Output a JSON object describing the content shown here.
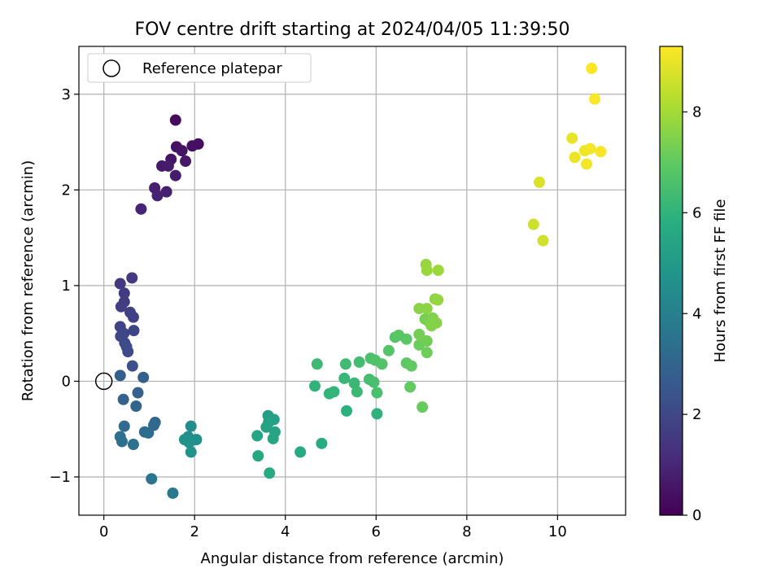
{
  "chart_data": {
    "type": "scatter",
    "title": "FOV centre drift starting at 2024/04/05 11:39:50",
    "xlabel": "Angular distance from reference (arcmin)",
    "ylabel": "Rotation from reference (arcmin)",
    "xlim": [
      -0.55,
      11.5
    ],
    "ylim": [
      -1.4,
      3.5
    ],
    "xticks": [
      0,
      2,
      4,
      6,
      8,
      10
    ],
    "yticks": [
      -1,
      0,
      1,
      2,
      3
    ],
    "grid": true,
    "legend": {
      "placement": "top-left",
      "entries": [
        "Reference platepar"
      ]
    },
    "colorbar": {
      "label": "Hours from first FF file",
      "range": [
        0,
        9.3
      ],
      "ticks": [
        0,
        2,
        4,
        6,
        8
      ],
      "colormap": "viridis"
    },
    "reference_point": {
      "x": 0,
      "y": 0,
      "label": "Reference platepar"
    },
    "points": [
      {
        "x": 1.58,
        "y": 2.73,
        "h": 0.3
      },
      {
        "x": 2.08,
        "y": 2.48,
        "h": 0.35
      },
      {
        "x": 1.95,
        "y": 2.46,
        "h": 0.4
      },
      {
        "x": 1.6,
        "y": 2.45,
        "h": 0.45
      },
      {
        "x": 1.72,
        "y": 2.41,
        "h": 0.5
      },
      {
        "x": 1.48,
        "y": 2.32,
        "h": 0.55
      },
      {
        "x": 1.8,
        "y": 2.3,
        "h": 0.6
      },
      {
        "x": 1.28,
        "y": 2.25,
        "h": 0.65
      },
      {
        "x": 1.42,
        "y": 2.25,
        "h": 0.7
      },
      {
        "x": 1.58,
        "y": 2.15,
        "h": 0.75
      },
      {
        "x": 1.12,
        "y": 2.02,
        "h": 0.8
      },
      {
        "x": 1.38,
        "y": 1.98,
        "h": 0.85
      },
      {
        "x": 1.18,
        "y": 1.94,
        "h": 0.9
      },
      {
        "x": 0.82,
        "y": 1.8,
        "h": 0.95
      },
      {
        "x": 0.62,
        "y": 1.08,
        "h": 1.5
      },
      {
        "x": 0.36,
        "y": 1.02,
        "h": 1.55
      },
      {
        "x": 0.45,
        "y": 0.92,
        "h": 1.6
      },
      {
        "x": 0.45,
        "y": 0.83,
        "h": 1.65
      },
      {
        "x": 0.38,
        "y": 0.78,
        "h": 1.7
      },
      {
        "x": 0.58,
        "y": 0.72,
        "h": 1.75
      },
      {
        "x": 0.65,
        "y": 0.67,
        "h": 1.8
      },
      {
        "x": 0.36,
        "y": 0.57,
        "h": 1.85
      },
      {
        "x": 0.66,
        "y": 0.53,
        "h": 1.9
      },
      {
        "x": 0.44,
        "y": 0.5,
        "h": 1.95
      },
      {
        "x": 0.37,
        "y": 0.47,
        "h": 2.0
      },
      {
        "x": 0.46,
        "y": 0.4,
        "h": 2.05
      },
      {
        "x": 0.5,
        "y": 0.36,
        "h": 2.1
      },
      {
        "x": 0.53,
        "y": 0.31,
        "h": 2.15
      },
      {
        "x": 0.63,
        "y": 0.16,
        "h": 2.25
      },
      {
        "x": 0.36,
        "y": 0.06,
        "h": 2.8
      },
      {
        "x": 0.87,
        "y": 0.04,
        "h": 2.85
      },
      {
        "x": 0.75,
        "y": -0.12,
        "h": 2.9
      },
      {
        "x": 0.43,
        "y": -0.19,
        "h": 2.95
      },
      {
        "x": 0.71,
        "y": -0.26,
        "h": 3.0
      },
      {
        "x": 1.13,
        "y": -0.43,
        "h": 3.1
      },
      {
        "x": 1.1,
        "y": -0.46,
        "h": 3.15
      },
      {
        "x": 0.45,
        "y": -0.47,
        "h": 3.2
      },
      {
        "x": 0.9,
        "y": -0.53,
        "h": 3.25
      },
      {
        "x": 0.98,
        "y": -0.54,
        "h": 3.3
      },
      {
        "x": 0.36,
        "y": -0.58,
        "h": 3.35
      },
      {
        "x": 0.4,
        "y": -0.63,
        "h": 3.4
      },
      {
        "x": 0.65,
        "y": -0.66,
        "h": 3.45
      },
      {
        "x": 1.05,
        "y": -1.02,
        "h": 3.6
      },
      {
        "x": 1.52,
        "y": -1.17,
        "h": 3.7
      },
      {
        "x": 1.92,
        "y": -0.47,
        "h": 4.5
      },
      {
        "x": 1.86,
        "y": -0.58,
        "h": 4.55
      },
      {
        "x": 2.04,
        "y": -0.61,
        "h": 4.6
      },
      {
        "x": 1.78,
        "y": -0.61,
        "h": 4.65
      },
      {
        "x": 1.88,
        "y": -0.64,
        "h": 4.7
      },
      {
        "x": 1.92,
        "y": -0.74,
        "h": 4.75
      },
      {
        "x": 3.62,
        "y": -0.36,
        "h": 5.2
      },
      {
        "x": 3.75,
        "y": -0.4,
        "h": 5.25
      },
      {
        "x": 3.63,
        "y": -0.43,
        "h": 5.3
      },
      {
        "x": 3.58,
        "y": -0.48,
        "h": 5.35
      },
      {
        "x": 3.77,
        "y": -0.53,
        "h": 5.4
      },
      {
        "x": 3.38,
        "y": -0.57,
        "h": 5.45
      },
      {
        "x": 3.73,
        "y": -0.6,
        "h": 5.5
      },
      {
        "x": 3.4,
        "y": -0.78,
        "h": 5.55
      },
      {
        "x": 3.65,
        "y": -0.96,
        "h": 5.6
      },
      {
        "x": 4.33,
        "y": -0.74,
        "h": 5.65
      },
      {
        "x": 4.8,
        "y": -0.65,
        "h": 5.7
      },
      {
        "x": 5.35,
        "y": -0.31,
        "h": 5.9
      },
      {
        "x": 6.02,
        "y": -0.34,
        "h": 5.95
      },
      {
        "x": 4.65,
        "y": -0.05,
        "h": 6.0
      },
      {
        "x": 4.97,
        "y": -0.13,
        "h": 6.05
      },
      {
        "x": 5.07,
        "y": -0.11,
        "h": 6.1
      },
      {
        "x": 5.3,
        "y": 0.03,
        "h": 6.15
      },
      {
        "x": 5.52,
        "y": -0.02,
        "h": 6.2
      },
      {
        "x": 5.58,
        "y": -0.11,
        "h": 6.25
      },
      {
        "x": 4.7,
        "y": 0.18,
        "h": 6.3
      },
      {
        "x": 5.33,
        "y": 0.18,
        "h": 6.35
      },
      {
        "x": 5.63,
        "y": 0.2,
        "h": 6.4
      },
      {
        "x": 5.85,
        "y": 0.02,
        "h": 6.45
      },
      {
        "x": 5.95,
        "y": -0.01,
        "h": 6.5
      },
      {
        "x": 6.02,
        "y": -0.12,
        "h": 6.55
      },
      {
        "x": 5.88,
        "y": 0.24,
        "h": 6.6
      },
      {
        "x": 5.98,
        "y": 0.22,
        "h": 6.65
      },
      {
        "x": 6.13,
        "y": 0.18,
        "h": 6.7
      },
      {
        "x": 6.28,
        "y": 0.32,
        "h": 6.75
      },
      {
        "x": 6.42,
        "y": 0.46,
        "h": 6.8
      },
      {
        "x": 6.5,
        "y": 0.48,
        "h": 6.85
      },
      {
        "x": 6.67,
        "y": 0.44,
        "h": 6.9
      },
      {
        "x": 6.67,
        "y": 0.19,
        "h": 6.95
      },
      {
        "x": 6.78,
        "y": 0.16,
        "h": 7.0
      },
      {
        "x": 6.75,
        "y": -0.06,
        "h": 7.05
      },
      {
        "x": 7.02,
        "y": -0.27,
        "h": 7.1
      },
      {
        "x": 6.95,
        "y": 0.38,
        "h": 7.15
      },
      {
        "x": 7.12,
        "y": 0.3,
        "h": 7.2
      },
      {
        "x": 7.12,
        "y": 0.42,
        "h": 7.25
      },
      {
        "x": 6.95,
        "y": 0.49,
        "h": 7.3
      },
      {
        "x": 7.08,
        "y": 0.65,
        "h": 7.35
      },
      {
        "x": 7.17,
        "y": 0.62,
        "h": 7.4
      },
      {
        "x": 7.25,
        "y": 0.66,
        "h": 7.45
      },
      {
        "x": 7.22,
        "y": 0.58,
        "h": 7.5
      },
      {
        "x": 7.33,
        "y": 0.61,
        "h": 7.55
      },
      {
        "x": 6.95,
        "y": 0.76,
        "h": 7.6
      },
      {
        "x": 7.12,
        "y": 0.76,
        "h": 7.65
      },
      {
        "x": 7.3,
        "y": 0.86,
        "h": 7.7
      },
      {
        "x": 7.36,
        "y": 0.85,
        "h": 7.75
      },
      {
        "x": 7.1,
        "y": 1.22,
        "h": 7.8
      },
      {
        "x": 7.12,
        "y": 1.16,
        "h": 7.85
      },
      {
        "x": 7.37,
        "y": 1.16,
        "h": 7.9
      },
      {
        "x": 9.47,
        "y": 1.64,
        "h": 8.6
      },
      {
        "x": 9.68,
        "y": 1.47,
        "h": 8.65
      },
      {
        "x": 9.6,
        "y": 2.08,
        "h": 8.8
      },
      {
        "x": 10.32,
        "y": 2.54,
        "h": 9.0
      },
      {
        "x": 10.38,
        "y": 2.34,
        "h": 9.05
      },
      {
        "x": 10.6,
        "y": 2.41,
        "h": 9.1
      },
      {
        "x": 10.72,
        "y": 2.43,
        "h": 9.15
      },
      {
        "x": 10.64,
        "y": 2.27,
        "h": 9.15
      },
      {
        "x": 10.95,
        "y": 2.4,
        "h": 9.2
      },
      {
        "x": 10.82,
        "y": 2.95,
        "h": 9.25
      },
      {
        "x": 10.75,
        "y": 3.27,
        "h": 9.3
      }
    ]
  }
}
